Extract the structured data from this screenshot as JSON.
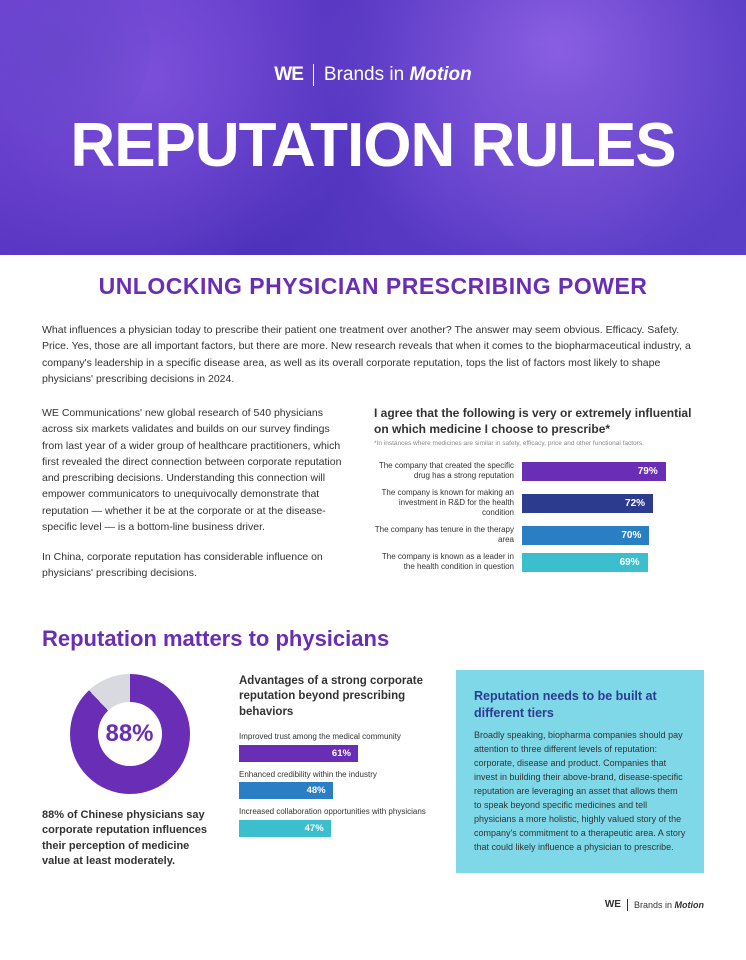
{
  "hero": {
    "brand_we": "WE",
    "brand_text_plain": "Brands in ",
    "brand_text_italic": "Motion",
    "title": "REPUTATION RULES",
    "background_colors": [
      "#6b3fd1",
      "#4a2fb8",
      "#5b3fc9"
    ]
  },
  "subtitle": "UNLOCKING PHYSICIAN PRESCRIBING POWER",
  "intro": "What influences a physician today to prescribe their patient one treatment over another? The answer may seem obvious. Efficacy. Safety. Price. Yes, those are all important factors, but there are more. New research reveals that when it comes to the biopharmaceutical industry, a company's leadership in a specific disease area, as well as its overall corporate reputation, tops the list of factors most likely to shape physicians' prescribing decisions in 2024.",
  "body_left_1": "WE Communications' new global research of 540 physicians across six markets validates and builds on our survey findings from last year of a wider group of healthcare practitioners, which first revealed the direct connection between corporate reputation and prescribing decisions. Understanding this connection will empower communicators to unequivocally demonstrate that reputation — whether it be at the corporate or at the disease-specific level — is a bottom-line business driver.",
  "body_left_2": "In China, corporate reputation has considerable influence on physicians' prescribing decisions.",
  "chart1": {
    "type": "horizontal_bar",
    "title": "I agree that the following is very or extremely influential on which medicine I choose to prescribe*",
    "footnote": "*In instances where medicines are similar in safety, efficacy, price and other functional factors.",
    "max_pct": 100,
    "title_fontsize": 12,
    "label_fontsize": 8,
    "value_fontsize": 10,
    "items": [
      {
        "label": "The company that created the specific drug has a strong reputation",
        "value": 79,
        "value_text": "79%",
        "color": "#6a2db5"
      },
      {
        "label": "The company is known for making an investment in R&D for the health condition",
        "value": 72,
        "value_text": "72%",
        "color": "#2d3b8f"
      },
      {
        "label": "The company has tenure in the therapy area",
        "value": 70,
        "value_text": "70%",
        "color": "#2a7fc4"
      },
      {
        "label": "The company is known as a leader in the health condition in question",
        "value": 69,
        "value_text": "69%",
        "color": "#3bbfcf"
      }
    ]
  },
  "section2_title": "Reputation matters to physicians",
  "donut": {
    "type": "donut",
    "pct": 88,
    "pct_text": "88%",
    "fill_color": "#6a2db5",
    "gap_color": "#d9d9e0",
    "label_color": "#6a2db5",
    "caption": "88% of Chinese physicians say corporate reputation influences their perception of medicine value at least moderately."
  },
  "chart2": {
    "type": "horizontal_bar",
    "title": "Advantages of a strong corporate reputation beyond prescribing behaviors",
    "max_pct": 100,
    "items": [
      {
        "label": "Improved trust among the medical community",
        "value": 61,
        "value_text": "61%",
        "color": "#6a2db5"
      },
      {
        "label": "Enhanced credibility within the industry",
        "value": 48,
        "value_text": "48%",
        "color": "#2a7fc4"
      },
      {
        "label": "Increased collaboration opportunities with physicians",
        "value": 47,
        "value_text": "47%",
        "color": "#3bbfcf"
      }
    ]
  },
  "callout": {
    "background_color": "#7fd8e8",
    "title_color": "#2d3b8f",
    "title": "Reputation needs to be built at different tiers",
    "body": "Broadly speaking, biopharma companies should pay attention to three different levels of reputation: corporate, disease and product. Companies that invest in building their above-brand, disease-specific reputation are leveraging an asset that allows them to speak beyond specific medicines and tell physicians a more holistic, highly valued story of the company's commitment to a therapeutic area. A story that could likely influence a physician to prescribe."
  },
  "footer": {
    "we": "WE",
    "text_plain": "Brands in ",
    "text_italic": "Motion"
  },
  "colors": {
    "brand_purple": "#6a2db5",
    "text": "#333333",
    "white": "#ffffff"
  }
}
